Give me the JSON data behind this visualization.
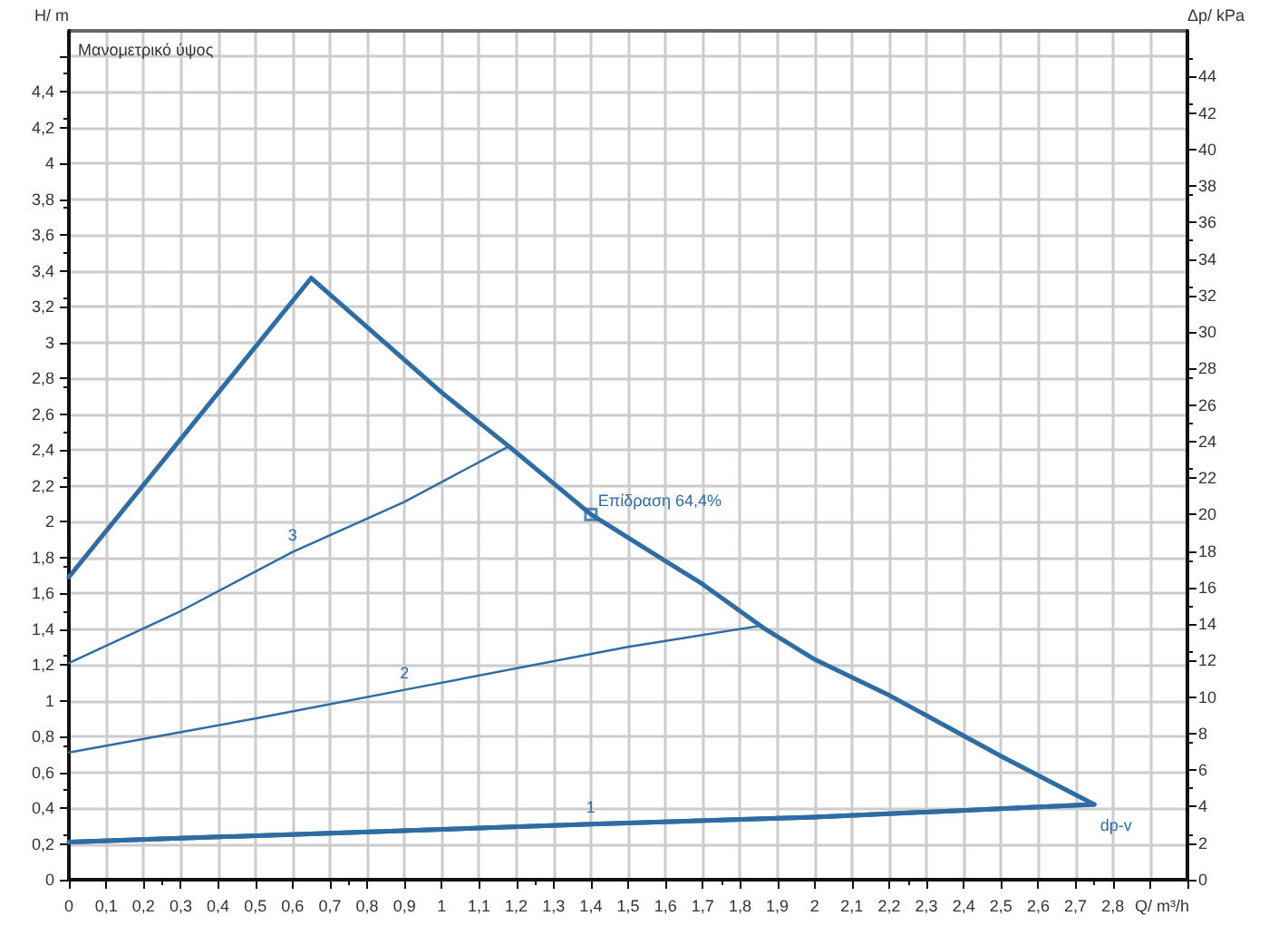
{
  "chart_data": {
    "type": "line",
    "xlabel": "Q/ m³/h",
    "ylabel": "H/ m",
    "y2label": "Δp/ kPa",
    "xlim": [
      0,
      3
    ],
    "ylim": [
      0,
      4.74
    ],
    "y2lim": [
      0,
      46.5
    ],
    "xticks": [
      0,
      {
        "value": 0.1,
        "label": "0,1"
      },
      {
        "value": 0.2,
        "label": "0,2"
      },
      {
        "value": 0.3,
        "label": "0,3"
      },
      {
        "value": 0.4,
        "label": "0,4"
      },
      {
        "value": 0.5,
        "label": "0,5"
      },
      {
        "value": 0.6,
        "label": "0,6"
      },
      {
        "value": 0.7,
        "label": "0,7"
      },
      {
        "value": 0.8,
        "label": "0,8"
      },
      {
        "value": 0.9,
        "label": "0,9"
      },
      1,
      {
        "value": 1.1,
        "label": "1,1"
      },
      {
        "value": 1.2,
        "label": "1,2"
      },
      {
        "value": 1.3,
        "label": "1,3"
      },
      {
        "value": 1.4,
        "label": "1,4"
      },
      {
        "value": 1.5,
        "label": "1,5"
      },
      {
        "value": 1.6,
        "label": "1,6"
      },
      {
        "value": 1.7,
        "label": "1,7"
      },
      {
        "value": 1.8,
        "label": "1,8"
      },
      {
        "value": 1.9,
        "label": "1,9"
      },
      2,
      {
        "value": 2.1,
        "label": "2,1"
      },
      {
        "value": 2.2,
        "label": "2,2"
      },
      {
        "value": 2.3,
        "label": "2,3"
      },
      {
        "value": 2.4,
        "label": "2,4"
      },
      {
        "value": 2.5,
        "label": "2,5"
      },
      {
        "value": 2.6,
        "label": "2,6"
      },
      {
        "value": 2.7,
        "label": "2,7"
      },
      {
        "value": 2.8,
        "label": "2,8"
      },
      {
        "value": 2.9,
        "label": null
      },
      {
        "value": 3,
        "label": null
      }
    ],
    "yticks": [
      0,
      {
        "value": 0.2,
        "label": "0,2"
      },
      {
        "value": 0.4,
        "label": "0,4"
      },
      {
        "value": 0.6,
        "label": "0,6"
      },
      {
        "value": 0.8,
        "label": "0,8"
      },
      1,
      {
        "value": 1.2,
        "label": "1,2"
      },
      {
        "value": 1.4,
        "label": "1,4"
      },
      {
        "value": 1.6,
        "label": "1,6"
      },
      {
        "value": 1.8,
        "label": "1,8"
      },
      2,
      {
        "value": 2.2,
        "label": "2,2"
      },
      {
        "value": 2.4,
        "label": "2,4"
      },
      {
        "value": 2.6,
        "label": "2,6"
      },
      {
        "value": 2.8,
        "label": "2,8"
      },
      3,
      {
        "value": 3.2,
        "label": "3,2"
      },
      {
        "value": 3.4,
        "label": "3,4"
      },
      {
        "value": 3.6,
        "label": "3,6"
      },
      {
        "value": 3.8,
        "label": "3,8"
      },
      4,
      {
        "value": 4.2,
        "label": "4,2"
      },
      {
        "value": 4.4,
        "label": "4,4"
      },
      {
        "value": 4.6,
        "label": null
      }
    ],
    "y2ticks": [
      0,
      2,
      4,
      6,
      8,
      10,
      12,
      14,
      16,
      18,
      20,
      22,
      24,
      26,
      28,
      30,
      32,
      34,
      36,
      38,
      40,
      42,
      44
    ],
    "grid": true,
    "legend": false,
    "series": [
      {
        "name": "dp-v",
        "color": "#2e6da4",
        "x": [
          0,
          0.65,
          1.0,
          1.18,
          1.4,
          1.6,
          1.7,
          1.86,
          2.0,
          2.2,
          2.5,
          2.75,
          2.75,
          2.0,
          1.4,
          0.7,
          0
        ],
        "values": [
          1.69,
          3.36,
          2.72,
          2.42,
          2.04,
          1.78,
          1.65,
          1.41,
          1.23,
          1.03,
          0.69,
          0.42,
          0.42,
          0.35,
          0.31,
          0.26,
          0.21
        ]
      },
      {
        "name": "1",
        "color": "#2e6da4",
        "x": [
          0,
          0.7,
          1.4,
          2.0,
          2.75
        ],
        "values": [
          0.21,
          0.26,
          0.31,
          0.35,
          0.42
        ]
      },
      {
        "name": "2",
        "color": "#2e6da4",
        "x": [
          0,
          0.5,
          0.9,
          1.5,
          1.86
        ],
        "values": [
          0.71,
          0.9,
          1.06,
          1.3,
          1.42
        ]
      },
      {
        "name": "3",
        "color": "#2e6da4",
        "x": [
          0,
          0.3,
          0.6,
          0.9,
          1.18
        ],
        "values": [
          1.21,
          1.5,
          1.83,
          2.11,
          2.42
        ]
      },
      {
        "type": "scatter",
        "marker": "square",
        "color": "#2e6da4",
        "x": [
          1.4
        ],
        "values": [
          2.04
        ]
      }
    ],
    "annotations": [
      "Μανομετρικό ύψος",
      {
        "text": "Επίδραση 64,4%",
        "x": 1.4,
        "y": 2.04
      }
    ]
  }
}
